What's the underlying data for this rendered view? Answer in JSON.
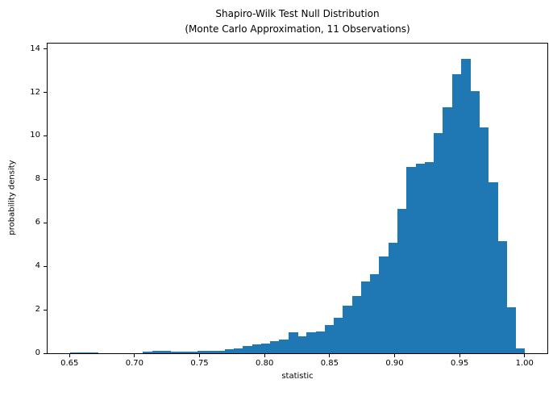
{
  "title": {
    "line1": "Shapiro-Wilk Test Null Distribution",
    "line2": "(Monte Carlo Approximation, 11 Observations)"
  },
  "chart_data": {
    "type": "bar",
    "subtype": "histogram",
    "title": "Shapiro-Wilk Test Null Distribution (Monte Carlo Approximation, 11 Observations)",
    "xlabel": "statistic",
    "ylabel": "probability density",
    "bar_color": "#1f77b4",
    "grid": false,
    "legend_position": "none",
    "bin_start": 0.6506,
    "bin_width": 0.006989,
    "densities": [
      0.02,
      0.05,
      0.05,
      0,
      0,
      0,
      0,
      0,
      0.07,
      0.13,
      0.12,
      0.09,
      0.06,
      0.08,
      0.1,
      0.12,
      0.12,
      0.19,
      0.22,
      0.33,
      0.4,
      0.45,
      0.56,
      0.62,
      0.95,
      0.77,
      0.95,
      1.02,
      1.29,
      1.64,
      2.2,
      2.62,
      3.3,
      3.64,
      4.47,
      5.09,
      6.63,
      8.57,
      8.72,
      8.8,
      10.14,
      11.3,
      12.83,
      13.55,
      12.05,
      10.4,
      7.88,
      5.15,
      2.1,
      0.22
    ],
    "xlim": [
      0.6331,
      1.0175
    ],
    "ylim": [
      0,
      14.245
    ],
    "xticks": [
      {
        "value": 0.65,
        "label": "0.65"
      },
      {
        "value": 0.7,
        "label": "0.70"
      },
      {
        "value": 0.75,
        "label": "0.75"
      },
      {
        "value": 0.8,
        "label": "0.80"
      },
      {
        "value": 0.85,
        "label": "0.85"
      },
      {
        "value": 0.9,
        "label": "0.90"
      },
      {
        "value": 0.95,
        "label": "0.95"
      },
      {
        "value": 1.0,
        "label": "1.00"
      }
    ],
    "yticks": [
      {
        "value": 0,
        "label": "0"
      },
      {
        "value": 2,
        "label": "2"
      },
      {
        "value": 4,
        "label": "4"
      },
      {
        "value": 6,
        "label": "6"
      },
      {
        "value": 8,
        "label": "8"
      },
      {
        "value": 10,
        "label": "10"
      },
      {
        "value": 12,
        "label": "12"
      },
      {
        "value": 14,
        "label": "14"
      }
    ]
  }
}
